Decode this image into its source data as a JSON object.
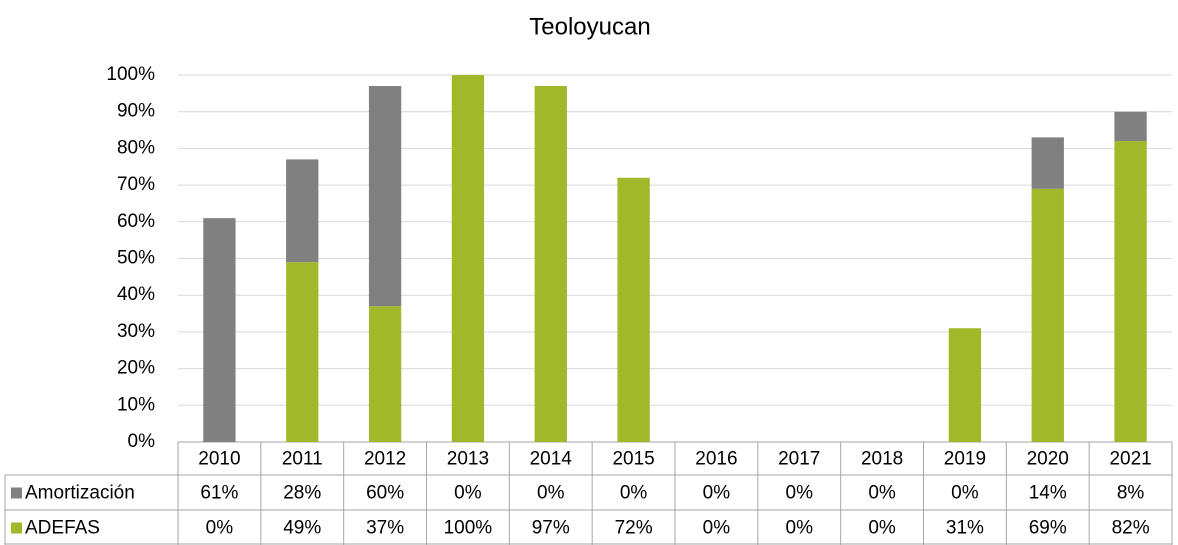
{
  "chart_data": {
    "type": "bar",
    "stacked": true,
    "title": "Teoloyucan",
    "categories": [
      "2010",
      "2011",
      "2012",
      "2013",
      "2014",
      "2015",
      "2016",
      "2017",
      "2018",
      "2019",
      "2020",
      "2021"
    ],
    "series": [
      {
        "name": "Amortización",
        "color": "#808080",
        "values": [
          61,
          28,
          60,
          0,
          0,
          0,
          0,
          0,
          0,
          0,
          14,
          8
        ],
        "value_labels": [
          "61%",
          "28%",
          "60%",
          "0%",
          "0%",
          "0%",
          "0%",
          "0%",
          "0%",
          "0%",
          "14%",
          "8%"
        ]
      },
      {
        "name": "ADEFAS",
        "color": "#a2b82b",
        "values": [
          0,
          49,
          37,
          100,
          97,
          72,
          0,
          0,
          0,
          31,
          69,
          82
        ],
        "value_labels": [
          "0%",
          "49%",
          "37%",
          "100%",
          "97%",
          "72%",
          "0%",
          "0%",
          "0%",
          "31%",
          "69%",
          "82%"
        ]
      }
    ],
    "ylim": [
      0,
      100
    ],
    "yticks": [
      {
        "value": 0,
        "label": "0%"
      },
      {
        "value": 10,
        "label": "10%"
      },
      {
        "value": 20,
        "label": "20%"
      },
      {
        "value": 30,
        "label": "30%"
      },
      {
        "value": 40,
        "label": "40%"
      },
      {
        "value": 50,
        "label": "50%"
      },
      {
        "value": 60,
        "label": "60%"
      },
      {
        "value": 70,
        "label": "70%"
      },
      {
        "value": 80,
        "label": "80%"
      },
      {
        "value": 90,
        "label": "90%"
      },
      {
        "value": 100,
        "label": "100%"
      }
    ],
    "grid": true
  }
}
